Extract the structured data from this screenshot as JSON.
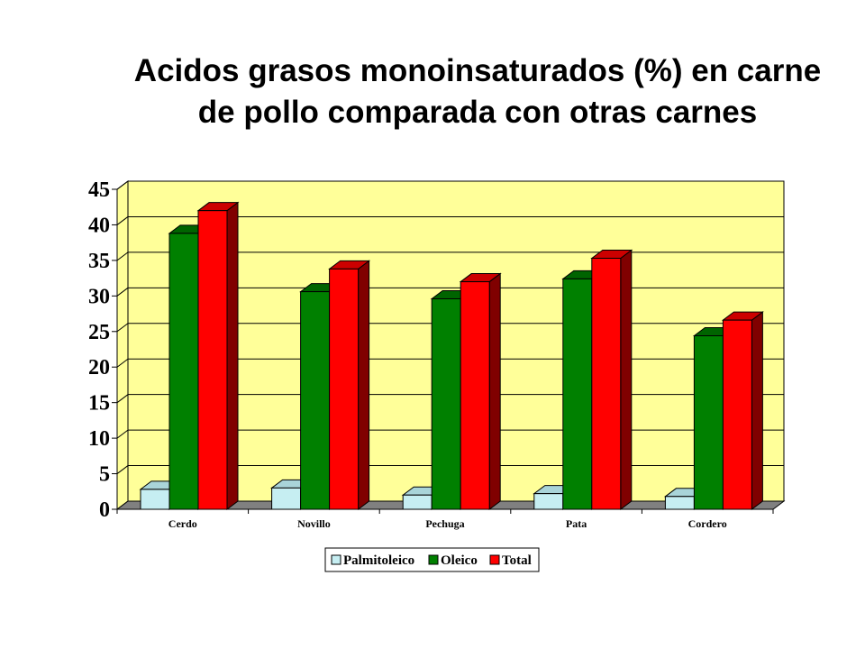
{
  "chart_data": {
    "type": "bar",
    "title": "Acidos grasos monoinsaturados (%) en carne de pollo comparada con otras carnes",
    "title_lines": [
      "Acidos grasos monoinsaturados (%) en carne",
      "de pollo comparada con otras carnes"
    ],
    "categories": [
      "Cerdo",
      "Novillo",
      "Pechuga",
      "Pata",
      "Cordero"
    ],
    "series": [
      {
        "name": "Palmitoleico",
        "values": [
          2.8,
          3.0,
          2.0,
          2.2,
          1.8
        ],
        "color": "#c6eef2",
        "side": "#8fb7bb",
        "top": "#a9d4d9"
      },
      {
        "name": "Oleico",
        "values": [
          38.8,
          30.6,
          29.6,
          32.4,
          24.4
        ],
        "color": "#008000",
        "side": "#004d00",
        "top": "#006400"
      },
      {
        "name": "Total",
        "values": [
          42.0,
          33.8,
          32.0,
          35.3,
          26.6
        ],
        "color": "#ff0000",
        "side": "#800000",
        "top": "#cc0000"
      }
    ],
    "ylim": [
      0,
      45
    ],
    "yticks": [
      "0",
      "5",
      "10",
      "15",
      "20",
      "25",
      "30",
      "35",
      "40",
      "45"
    ],
    "xlabel": "",
    "ylabel": "",
    "grid": true,
    "plot_background": "#ffff99",
    "floor_color": "#808080",
    "legend_placement": "bottom"
  }
}
